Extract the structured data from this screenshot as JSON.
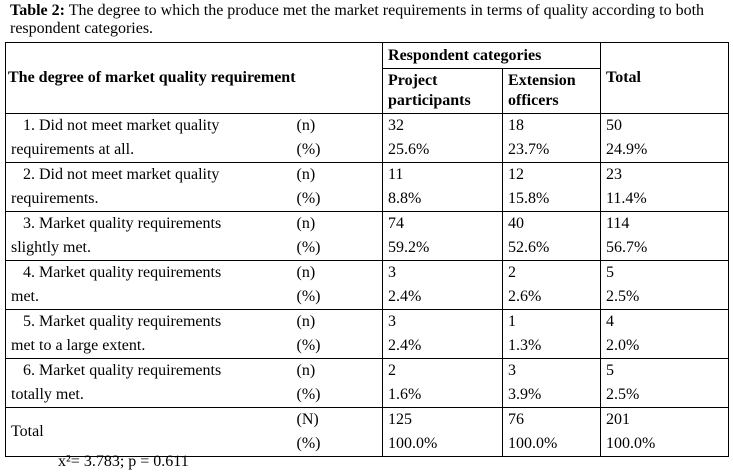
{
  "caption": {
    "label": "Table 2:",
    "text": "The degree to which the produce met the market requirements in terms of quality according to both respondent categories."
  },
  "header": {
    "row_label": "The degree of market quality requirement",
    "group": "Respondent categories",
    "columns": [
      [
        "Project",
        "participants"
      ],
      [
        "Extension",
        "officers"
      ]
    ],
    "total": "Total"
  },
  "rows": [
    {
      "label": [
        "1.  Did not meet market quality",
        "requirements at all."
      ],
      "units": [
        "(n)",
        "(%)"
      ],
      "cells": [
        [
          "32",
          "25.6%"
        ],
        [
          "18",
          "23.7%"
        ],
        [
          "50",
          "24.9%"
        ]
      ]
    },
    {
      "label": [
        "2.  Did not meet market quality",
        "requirements."
      ],
      "units": [
        "(n)",
        "(%)"
      ],
      "cells": [
        [
          "11",
          "8.8%"
        ],
        [
          "12",
          "15.8%"
        ],
        [
          "23",
          "11.4%"
        ]
      ]
    },
    {
      "label": [
        "3.  Market quality requirements",
        "slightly met."
      ],
      "units": [
        "(n)",
        "(%)"
      ],
      "cells": [
        [
          "74",
          "59.2%"
        ],
        [
          "40",
          "52.6%"
        ],
        [
          "114",
          "56.7%"
        ]
      ]
    },
    {
      "label": [
        "4.  Market quality requirements",
        "met."
      ],
      "units": [
        "(n)",
        "(%)"
      ],
      "cells": [
        [
          "3",
          "2.4%"
        ],
        [
          "2",
          "2.6%"
        ],
        [
          "5",
          "2.5%"
        ]
      ]
    },
    {
      "label": [
        "5.  Market quality requirements",
        "met to a large extent."
      ],
      "units": [
        "(n)",
        "(%)"
      ],
      "cells": [
        [
          "3",
          "2.4%"
        ],
        [
          "1",
          "1.3%"
        ],
        [
          "4",
          "2.0%"
        ]
      ]
    },
    {
      "label": [
        "6.  Market quality requirements",
        "totally met."
      ],
      "units": [
        "(n)",
        "(%)"
      ],
      "cells": [
        [
          "2",
          "1.6%"
        ],
        [
          "3",
          "3.9%"
        ],
        [
          "5",
          "2.5%"
        ]
      ]
    },
    {
      "label": [
        "Total"
      ],
      "units": [
        "(N)",
        "(%)"
      ],
      "cells": [
        [
          "125",
          "100.0%"
        ],
        [
          "76",
          "100.0%"
        ],
        [
          "201",
          "100.0%"
        ]
      ]
    }
  ],
  "footer": "x²= 3.783; p = 0.611"
}
